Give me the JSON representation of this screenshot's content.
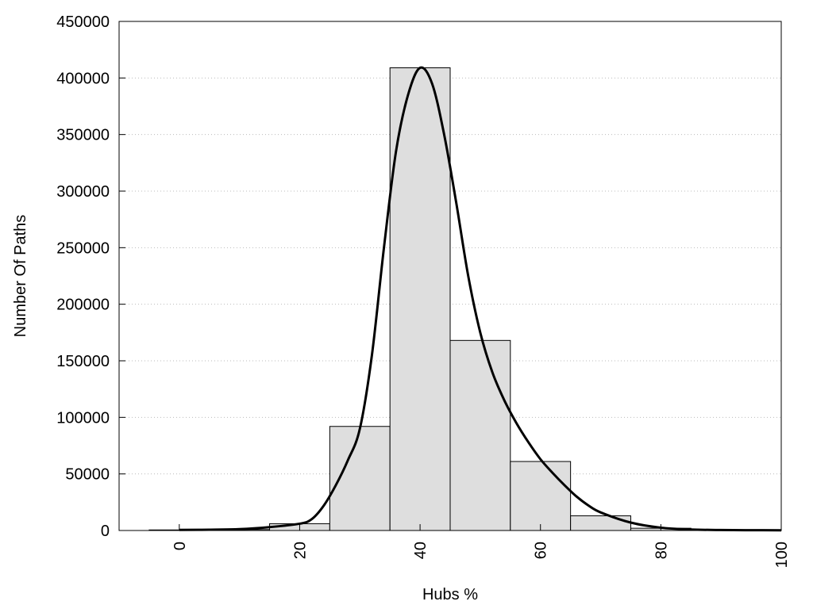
{
  "chart_data": {
    "type": "bar",
    "title": "",
    "xlabel": "Hubs %",
    "ylabel": "Number Of Paths",
    "xlim": [
      -10,
      100
    ],
    "ylim": [
      0,
      450000
    ],
    "x_ticks": [
      0,
      20,
      40,
      60,
      80,
      100
    ],
    "y_ticks": [
      0,
      50000,
      100000,
      150000,
      200000,
      250000,
      300000,
      350000,
      400000,
      450000
    ],
    "grid": "horizontal-dotted",
    "legend": "none",
    "bin_width": 10,
    "bars": {
      "centers": [
        0,
        10,
        20,
        30,
        40,
        50,
        60,
        70,
        80,
        90,
        100
      ],
      "values": [
        500,
        800,
        6000,
        92000,
        409000,
        168000,
        61000,
        13000,
        2000,
        500,
        300
      ]
    },
    "curve": {
      "x": [
        0,
        5,
        10,
        15,
        20,
        22,
        24,
        26,
        28,
        30,
        32,
        34,
        36,
        38,
        40,
        42,
        44,
        46,
        48,
        50,
        52,
        54,
        56,
        58,
        60,
        62,
        64,
        66,
        68,
        70,
        75,
        80,
        85,
        90,
        95,
        100
      ],
      "y": [
        500,
        700,
        1200,
        3000,
        6000,
        10000,
        22000,
        40000,
        62000,
        90000,
        155000,
        250000,
        335000,
        385000,
        409000,
        395000,
        350000,
        290000,
        225000,
        175000,
        140000,
        115000,
        95000,
        78000,
        63000,
        51000,
        40000,
        30000,
        22000,
        16000,
        7000,
        2500,
        900,
        400,
        250,
        200
      ]
    },
    "colors": {
      "bar_fill": "#dedede",
      "bar_stroke": "#000000",
      "curve": "#000000",
      "grid": "#bbbbbb"
    }
  }
}
